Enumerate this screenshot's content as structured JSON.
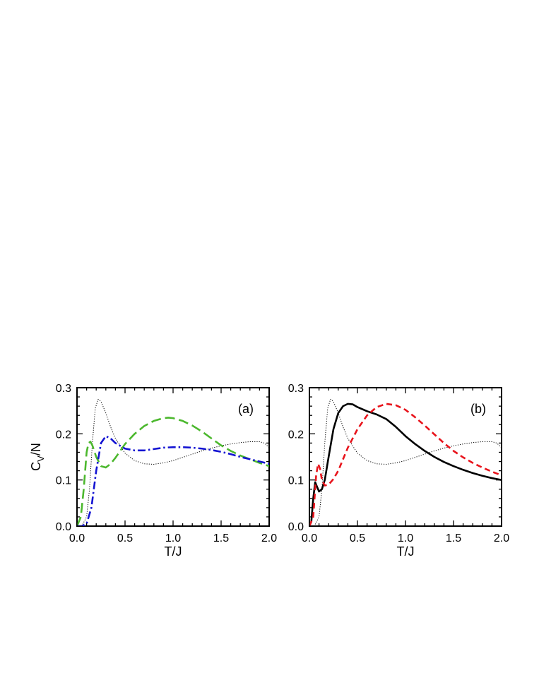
{
  "chart_data": [
    {
      "type": "line",
      "panel_label": "(a)",
      "xlabel": "T/J",
      "ylabel": "C",
      "ylabel_subscript": "V",
      "ylabel_suffix": "/N",
      "xlim": [
        0.0,
        2.0
      ],
      "ylim": [
        0.0,
        0.3
      ],
      "xticks": [
        "0.0",
        "0.5",
        "1.0",
        "1.5",
        "2.0"
      ],
      "yticks": [
        "0.0",
        "0.1",
        "0.2",
        "0.3"
      ],
      "series": [
        {
          "color": "#000000",
          "style": "dotted",
          "width": 1.0,
          "x": [
            0.0,
            0.05,
            0.1,
            0.13,
            0.16,
            0.19,
            0.22,
            0.25,
            0.3,
            0.35,
            0.4,
            0.5,
            0.6,
            0.7,
            0.8,
            0.9,
            1.0,
            1.1,
            1.2,
            1.3,
            1.4,
            1.5,
            1.6,
            1.7,
            1.8,
            1.9,
            1.95,
            2.0
          ],
          "y": [
            0.0,
            0.0,
            0.02,
            0.08,
            0.18,
            0.255,
            0.275,
            0.27,
            0.245,
            0.215,
            0.19,
            0.158,
            0.142,
            0.135,
            0.134,
            0.137,
            0.142,
            0.149,
            0.156,
            0.163,
            0.169,
            0.174,
            0.178,
            0.181,
            0.183,
            0.183,
            0.18,
            0.17
          ]
        },
        {
          "color": "#4cb82e",
          "style": "long-dash",
          "width": 2.6,
          "x": [
            0.0,
            0.04,
            0.07,
            0.1,
            0.12,
            0.14,
            0.16,
            0.2,
            0.25,
            0.3,
            0.35,
            0.4,
            0.5,
            0.6,
            0.7,
            0.8,
            0.9,
            0.95,
            1.0,
            1.1,
            1.2,
            1.3,
            1.4,
            1.5,
            1.6,
            1.7,
            1.8,
            1.9,
            2.0
          ],
          "y": [
            0.0,
            0.02,
            0.08,
            0.16,
            0.18,
            0.183,
            0.175,
            0.15,
            0.13,
            0.127,
            0.135,
            0.148,
            0.178,
            0.2,
            0.217,
            0.228,
            0.234,
            0.235,
            0.234,
            0.228,
            0.218,
            0.205,
            0.19,
            0.175,
            0.163,
            0.153,
            0.145,
            0.137,
            0.13
          ]
        },
        {
          "color": "#1414d2",
          "style": "dash-dot",
          "width": 2.6,
          "x": [
            0.0,
            0.05,
            0.1,
            0.15,
            0.2,
            0.25,
            0.3,
            0.35,
            0.4,
            0.5,
            0.6,
            0.7,
            0.8,
            0.9,
            1.0,
            1.1,
            1.2,
            1.3,
            1.4,
            1.5,
            1.6,
            1.7,
            1.8,
            1.9,
            2.0
          ],
          "y": [
            0.0,
            0.0,
            0.005,
            0.04,
            0.12,
            0.18,
            0.195,
            0.19,
            0.18,
            0.168,
            0.164,
            0.164,
            0.167,
            0.17,
            0.171,
            0.171,
            0.17,
            0.168,
            0.165,
            0.161,
            0.156,
            0.15,
            0.145,
            0.14,
            0.135
          ]
        }
      ]
    },
    {
      "type": "line",
      "panel_label": "(b)",
      "xlabel": "T/J",
      "xlim": [
        0.0,
        2.0
      ],
      "ylim": [
        0.0,
        0.3
      ],
      "xticks": [
        "0.0",
        "0.5",
        "1.0",
        "1.5",
        "2.0"
      ],
      "yticks": [
        "0.0",
        "0.1",
        "0.2",
        "0.3"
      ],
      "series": [
        {
          "color": "#000000",
          "style": "dotted",
          "width": 1.0,
          "x": [
            0.0,
            0.05,
            0.1,
            0.13,
            0.16,
            0.19,
            0.22,
            0.25,
            0.3,
            0.35,
            0.4,
            0.5,
            0.6,
            0.7,
            0.8,
            0.9,
            1.0,
            1.1,
            1.2,
            1.3,
            1.4,
            1.5,
            1.6,
            1.7,
            1.8,
            1.9,
            1.95,
            2.0
          ],
          "y": [
            0.0,
            0.0,
            0.02,
            0.08,
            0.18,
            0.255,
            0.275,
            0.27,
            0.245,
            0.215,
            0.19,
            0.158,
            0.142,
            0.135,
            0.134,
            0.137,
            0.142,
            0.149,
            0.156,
            0.163,
            0.169,
            0.174,
            0.178,
            0.181,
            0.183,
            0.183,
            0.18,
            0.17
          ]
        },
        {
          "color": "#000000",
          "style": "solid",
          "width": 2.6,
          "x": [
            0.0,
            0.02,
            0.04,
            0.06,
            0.08,
            0.1,
            0.13,
            0.16,
            0.2,
            0.25,
            0.3,
            0.35,
            0.4,
            0.45,
            0.5,
            0.6,
            0.7,
            0.8,
            0.9,
            1.0,
            1.1,
            1.2,
            1.3,
            1.4,
            1.5,
            1.6,
            1.7,
            1.8,
            1.9,
            2.0
          ],
          "y": [
            0.0,
            0.01,
            0.06,
            0.095,
            0.085,
            0.075,
            0.08,
            0.1,
            0.15,
            0.21,
            0.245,
            0.26,
            0.265,
            0.264,
            0.258,
            0.249,
            0.242,
            0.232,
            0.215,
            0.195,
            0.178,
            0.163,
            0.15,
            0.139,
            0.13,
            0.122,
            0.115,
            0.109,
            0.104,
            0.1
          ]
        },
        {
          "color": "#e8141c",
          "style": "dashed",
          "width": 2.6,
          "x": [
            0.0,
            0.04,
            0.07,
            0.09,
            0.11,
            0.13,
            0.16,
            0.2,
            0.25,
            0.3,
            0.35,
            0.4,
            0.5,
            0.6,
            0.7,
            0.8,
            0.9,
            1.0,
            1.1,
            1.2,
            1.3,
            1.4,
            1.5,
            1.6,
            1.7,
            1.8,
            1.9,
            2.0
          ],
          "y": [
            0.0,
            0.02,
            0.11,
            0.135,
            0.125,
            0.1,
            0.088,
            0.09,
            0.102,
            0.12,
            0.145,
            0.17,
            0.21,
            0.24,
            0.258,
            0.265,
            0.262,
            0.252,
            0.236,
            0.218,
            0.199,
            0.18,
            0.163,
            0.149,
            0.137,
            0.127,
            0.118,
            0.11
          ]
        }
      ]
    }
  ]
}
